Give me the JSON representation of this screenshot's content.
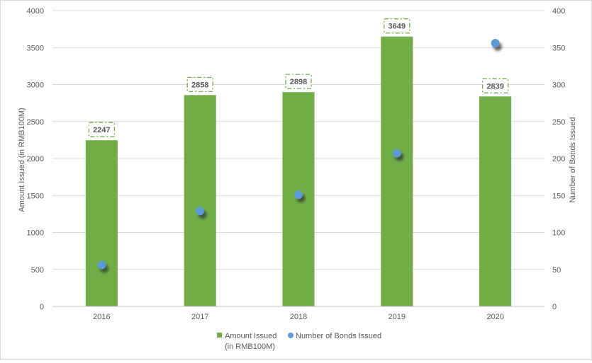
{
  "chart_data": {
    "type": "bar",
    "categories": [
      "2016",
      "2017",
      "2018",
      "2019",
      "2020"
    ],
    "series": [
      {
        "name": "Amount Issued (in RMB100M)",
        "kind": "bar",
        "axis": "left",
        "color": "#70ad47",
        "values": [
          2247,
          2858,
          2898,
          3649,
          2839
        ],
        "data_labels": [
          "2247",
          "2858",
          "2898",
          "3649",
          "2839"
        ]
      },
      {
        "name": "Number of Bonds Issued",
        "kind": "scatter",
        "axis": "right",
        "color": "#5b9bd5",
        "values": [
          56,
          129,
          151,
          207,
          356
        ]
      }
    ],
    "y_left": {
      "label": "Amount Issued (in RMB100M)",
      "ylim": [
        0,
        4000
      ],
      "ticks": [
        "0",
        "500",
        "1000",
        "1500",
        "2000",
        "2500",
        "3000",
        "3500",
        "4000"
      ]
    },
    "y_right": {
      "label": "Number of  Bonds Issued",
      "ylim": [
        0,
        400
      ],
      "ticks": [
        "0",
        "50",
        "100",
        "150",
        "200",
        "250",
        "300",
        "350",
        "400"
      ]
    },
    "grid": true,
    "legend": {
      "position": "bottom",
      "bar_label_line1": "Amount Issued",
      "bar_label_line2": "(in RMB100M)",
      "scatter_label": "Number of Bonds Issued"
    }
  }
}
